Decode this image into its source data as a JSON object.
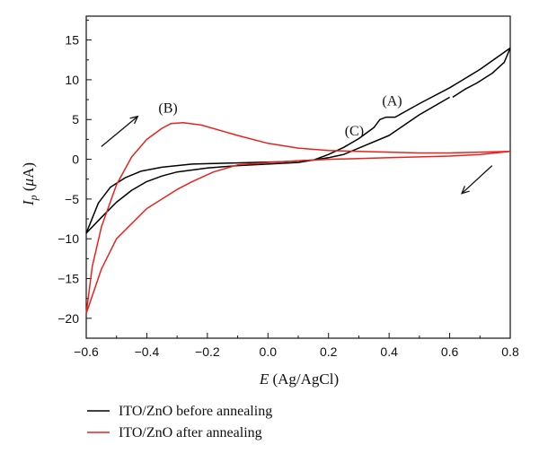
{
  "chart_data": {
    "type": "line",
    "xlabel_var": "E",
    "xlabel_unit": " (Ag/AgCl)",
    "ylabel_var": "I",
    "ylabel_sub": "p",
    "ylabel_open": " (",
    "ylabel_mu": "μ",
    "ylabel_close": "A)",
    "xlim": [
      -0.6,
      0.8
    ],
    "ylim": [
      -22.5,
      18
    ],
    "x_ticks": [
      -0.6,
      -0.4,
      -0.2,
      0.0,
      0.2,
      0.4,
      0.6,
      0.8
    ],
    "x_tick_labels": [
      "−0.6",
      "−0.4",
      "−0.2",
      "0.0",
      "0.2",
      "0.4",
      "0.6",
      "0.8"
    ],
    "y_ticks": [
      -20,
      -15,
      -10,
      -5,
      0,
      5,
      10,
      15
    ],
    "y_tick_labels": [
      "−20",
      "−15",
      "−10",
      "−5",
      "0",
      "5",
      "10",
      "15"
    ],
    "grid": false,
    "legend_position": "bottom-left below plot",
    "series": [
      {
        "name": "ITO/ZnO before annealing",
        "color": "#000000",
        "segments": [
          [
            [
              -0.6,
              -9.3
            ],
            [
              -0.55,
              -7.3
            ],
            [
              -0.5,
              -5.4
            ],
            [
              -0.45,
              -3.9
            ],
            [
              -0.4,
              -2.8
            ],
            [
              -0.35,
              -2.1
            ],
            [
              -0.3,
              -1.6
            ],
            [
              -0.2,
              -1.1
            ],
            [
              -0.1,
              -0.8
            ],
            [
              0.0,
              -0.6
            ],
            [
              0.1,
              -0.4
            ],
            [
              0.15,
              -0.1
            ],
            [
              0.2,
              0.6
            ],
            [
              0.25,
              1.5
            ],
            [
              0.3,
              2.6
            ],
            [
              0.35,
              4.0
            ],
            [
              0.37,
              5.0
            ],
            [
              0.39,
              5.3
            ],
            [
              0.42,
              5.3
            ],
            [
              0.5,
              7.0
            ],
            [
              0.6,
              9.0
            ],
            [
              0.7,
              11.3
            ],
            [
              0.8,
              14.0
            ]
          ],
          [
            [
              0.8,
              14.0
            ],
            [
              0.78,
              12.2
            ],
            [
              0.74,
              10.8
            ],
            [
              0.69,
              9.6
            ],
            [
              0.65,
              8.8
            ],
            [
              0.61,
              7.8
            ]
          ],
          [
            [
              0.6,
              7.8
            ],
            [
              0.5,
              5.6
            ],
            [
              0.4,
              3.0
            ],
            [
              0.3,
              1.4
            ],
            [
              0.25,
              0.6
            ],
            [
              0.2,
              0.2
            ],
            [
              0.15,
              -0.1
            ],
            [
              0.05,
              -0.3
            ],
            [
              -0.05,
              -0.4
            ],
            [
              -0.15,
              -0.5
            ],
            [
              -0.25,
              -0.6
            ],
            [
              -0.35,
              -1.0
            ],
            [
              -0.42,
              -1.5
            ],
            [
              -0.47,
              -2.3
            ],
            [
              -0.52,
              -3.5
            ],
            [
              -0.56,
              -5.5
            ],
            [
              -0.6,
              -9.3
            ]
          ]
        ]
      },
      {
        "name": "ITO/ZnO after annealing",
        "color": "#e8231d",
        "segments": [
          [
            [
              -0.6,
              -19.4
            ],
            [
              -0.58,
              -13.5
            ],
            [
              -0.55,
              -8.5
            ],
            [
              -0.5,
              -3.2
            ],
            [
              -0.45,
              0.3
            ],
            [
              -0.4,
              2.5
            ],
            [
              -0.35,
              3.9
            ],
            [
              -0.32,
              4.5
            ],
            [
              -0.28,
              4.6
            ],
            [
              -0.22,
              4.3
            ],
            [
              -0.1,
              3.0
            ],
            [
              0.0,
              2.0
            ],
            [
              0.1,
              1.4
            ],
            [
              0.2,
              1.1
            ],
            [
              0.3,
              1.0
            ],
            [
              0.4,
              0.9
            ],
            [
              0.5,
              0.8
            ],
            [
              0.6,
              0.8
            ],
            [
              0.7,
              0.9
            ],
            [
              0.8,
              1.0
            ]
          ],
          [
            [
              0.8,
              1.0
            ],
            [
              0.7,
              0.6
            ],
            [
              0.6,
              0.4
            ],
            [
              0.5,
              0.3
            ],
            [
              0.4,
              0.2
            ],
            [
              0.3,
              0.1
            ],
            [
              0.2,
              0.0
            ],
            [
              0.1,
              -0.2
            ],
            [
              0.0,
              -0.4
            ],
            [
              -0.1,
              -0.7
            ],
            [
              -0.18,
              -1.6
            ],
            [
              -0.25,
              -2.8
            ],
            [
              -0.3,
              -3.8
            ],
            [
              -0.4,
              -6.2
            ],
            [
              -0.5,
              -10.0
            ],
            [
              -0.55,
              -13.8
            ],
            [
              -0.6,
              -19.4
            ]
          ]
        ]
      }
    ],
    "annotations": [
      {
        "text": "(A)",
        "x": 0.41,
        "y": 6.8
      },
      {
        "text": "(B)",
        "x": -0.33,
        "y": 5.9
      },
      {
        "text": "(C)",
        "x": 0.285,
        "y": 3.0
      }
    ],
    "arrows": [
      {
        "x1": -0.55,
        "y1": 1.6,
        "x2": -0.43,
        "y2": 5.4
      },
      {
        "x1": 0.74,
        "y1": -0.8,
        "x2": 0.64,
        "y2": -4.3
      }
    ]
  }
}
